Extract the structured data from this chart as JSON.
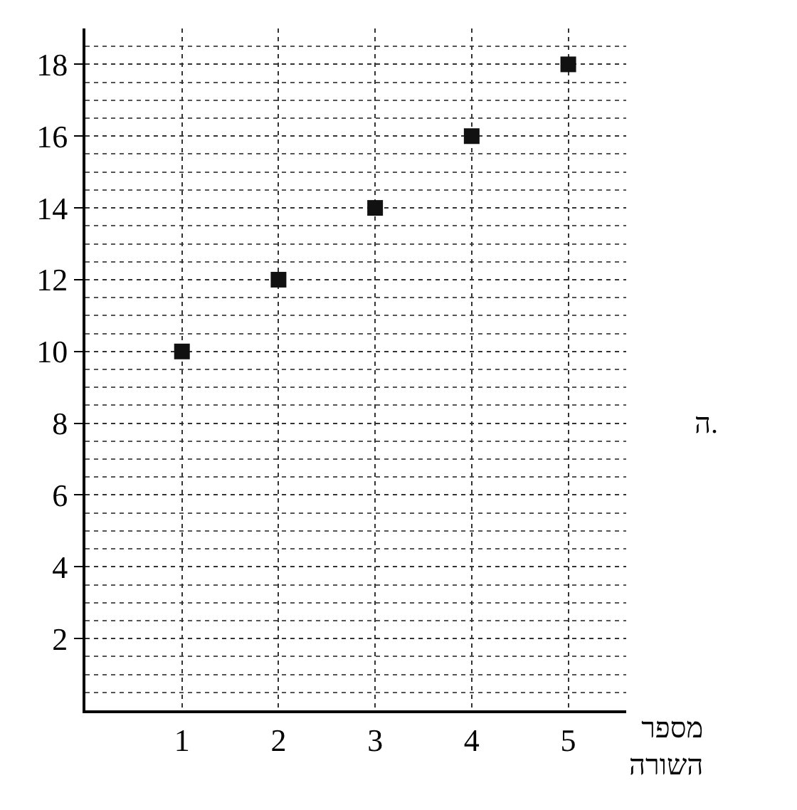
{
  "chart_data": {
    "type": "scatter",
    "x": [
      1,
      2,
      3,
      4,
      5
    ],
    "series": [
      {
        "color": "#111111",
        "values": [
          10,
          12,
          14,
          16,
          18
        ]
      }
    ],
    "xlabel": "מספר\nהשורה",
    "xlim": [
      0,
      5.6
    ],
    "xticks": [
      1,
      2,
      3,
      4,
      5
    ],
    "ylim": [
      0,
      19
    ],
    "yticks": [
      2,
      4,
      6,
      8,
      10,
      12,
      14,
      16,
      18
    ],
    "grid": true,
    "marker": "square",
    "legend": false,
    "annotations": [
      "ה."
    ]
  }
}
